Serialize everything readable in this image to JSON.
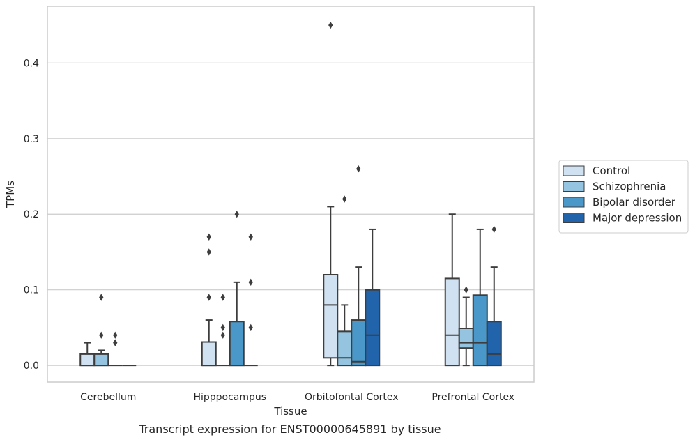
{
  "caption": "Transcript expression for ENST00000645891 by tissue",
  "chart_data": {
    "type": "box",
    "title": "",
    "xlabel": "Tissue",
    "ylabel": "TPMs",
    "ylim": [
      -0.022,
      0.475
    ],
    "yticks": [
      0.0,
      0.1,
      0.2,
      0.3,
      0.4
    ],
    "ytick_labels": [
      "0.0",
      "0.1",
      "0.2",
      "0.3",
      "0.4"
    ],
    "grid": "horizontal",
    "legend_position": "right",
    "categories": [
      "Cerebellum",
      "Hipppocampus",
      "Orbitofontal Cortex",
      "Prefrontal Cortex"
    ],
    "series": [
      {
        "name": "Control",
        "color": "#d0e1f2",
        "boxes": [
          {
            "q1": 0.0,
            "median": 0.0,
            "q3": 0.015,
            "whisker_low": 0.0,
            "whisker_high": 0.03,
            "outliers": []
          },
          {
            "q1": 0.0,
            "median": 0.0,
            "q3": 0.031,
            "whisker_low": 0.0,
            "whisker_high": 0.06,
            "outliers": [
              0.09,
              0.15,
              0.17
            ]
          },
          {
            "q1": 0.01,
            "median": 0.08,
            "q3": 0.12,
            "whisker_low": 0.0,
            "whisker_high": 0.21,
            "outliers": [
              0.45
            ]
          },
          {
            "q1": 0.0,
            "median": 0.04,
            "q3": 0.115,
            "whisker_low": 0.0,
            "whisker_high": 0.2,
            "outliers": []
          }
        ]
      },
      {
        "name": "Schizophrenia",
        "color": "#94c4df",
        "boxes": [
          {
            "q1": 0.0,
            "median": 0.0,
            "q3": 0.015,
            "whisker_low": 0.0,
            "whisker_high": 0.02,
            "outliers": [
              0.04,
              0.09
            ]
          },
          {
            "q1": 0.0,
            "median": 0.0,
            "q3": 0.0,
            "whisker_low": 0.0,
            "whisker_high": 0.0,
            "outliers": [
              0.04,
              0.05,
              0.09
            ]
          },
          {
            "q1": 0.0,
            "median": 0.01,
            "q3": 0.045,
            "whisker_low": 0.0,
            "whisker_high": 0.08,
            "outliers": [
              0.22
            ]
          },
          {
            "q1": 0.023,
            "median": 0.03,
            "q3": 0.049,
            "whisker_low": 0.0,
            "whisker_high": 0.09,
            "outliers": [
              0.1
            ]
          }
        ]
      },
      {
        "name": "Bipolar disorder",
        "color": "#4a98c9",
        "boxes": [
          {
            "q1": 0.0,
            "median": 0.0,
            "q3": 0.0,
            "whisker_low": 0.0,
            "whisker_high": 0.0,
            "outliers": [
              0.03,
              0.04
            ]
          },
          {
            "q1": 0.0,
            "median": 0.0,
            "q3": 0.058,
            "whisker_low": 0.0,
            "whisker_high": 0.11,
            "outliers": [
              0.2
            ]
          },
          {
            "q1": 0.0,
            "median": 0.005,
            "q3": 0.06,
            "whisker_low": 0.0,
            "whisker_high": 0.13,
            "outliers": [
              0.26
            ]
          },
          {
            "q1": 0.0,
            "median": 0.03,
            "q3": 0.093,
            "whisker_low": 0.0,
            "whisker_high": 0.18,
            "outliers": []
          }
        ]
      },
      {
        "name": "Major depression",
        "color": "#2164ab",
        "boxes": [
          {
            "q1": 0.0,
            "median": 0.0,
            "q3": 0.0,
            "whisker_low": 0.0,
            "whisker_high": 0.0,
            "outliers": []
          },
          {
            "q1": 0.0,
            "median": 0.0,
            "q3": 0.0,
            "whisker_low": 0.0,
            "whisker_high": 0.0,
            "outliers": [
              0.05,
              0.11,
              0.17
            ]
          },
          {
            "q1": 0.0,
            "median": 0.04,
            "q3": 0.1,
            "whisker_low": 0.0,
            "whisker_high": 0.18,
            "outliers": []
          },
          {
            "q1": 0.0,
            "median": 0.015,
            "q3": 0.058,
            "whisker_low": 0.0,
            "whisker_high": 0.13,
            "outliers": [
              0.18
            ]
          }
        ]
      }
    ]
  }
}
